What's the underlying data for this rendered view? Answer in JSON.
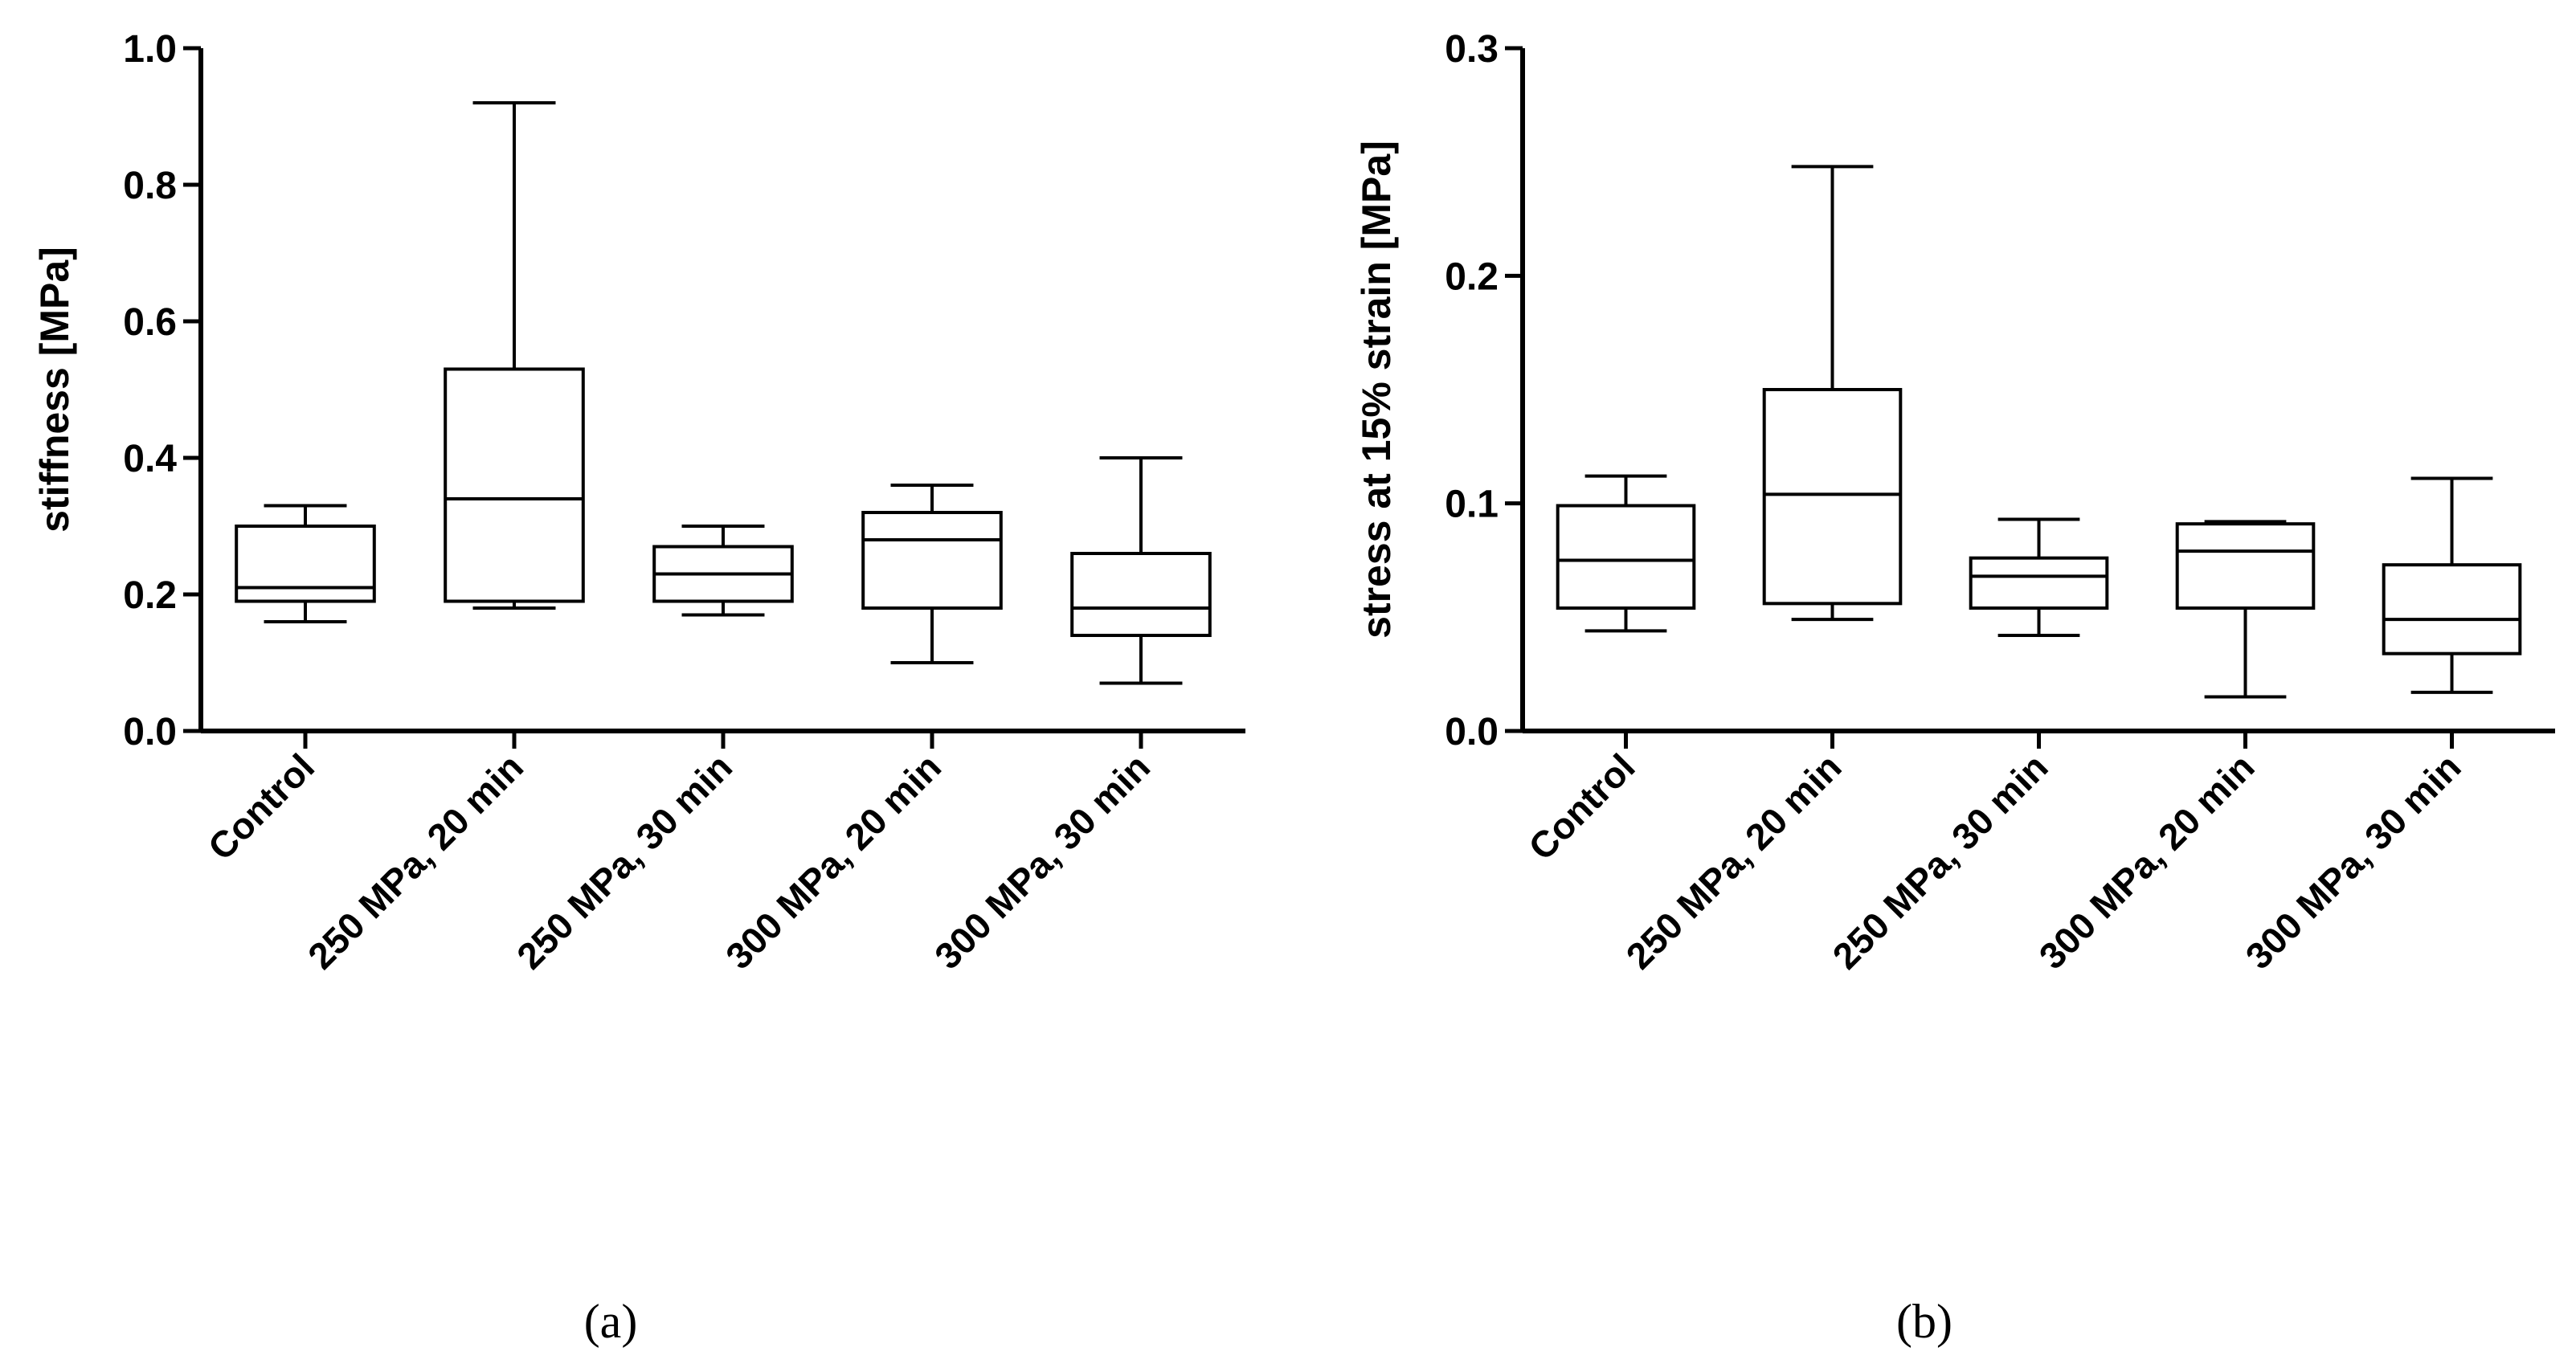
{
  "chart_data": [
    {
      "type": "boxplot",
      "panel": "a",
      "caption": "(a)",
      "ylabel": "stiffness [MPa]",
      "xlabel": "",
      "ylim": [
        0.0,
        1.0
      ],
      "yticks": [
        0.0,
        0.2,
        0.4,
        0.6,
        0.8,
        1.0
      ],
      "ytick_labels": [
        "0.0",
        "0.2",
        "0.4",
        "0.6",
        "0.8",
        "1.0"
      ],
      "categories": [
        "Control",
        "250 MPa, 20 min",
        "250 MPa, 30 min",
        "300 MPa, 20 min",
        "300 MPa, 30 min"
      ],
      "boxes": [
        {
          "min": 0.16,
          "q1": 0.19,
          "median": 0.21,
          "q3": 0.3,
          "max": 0.33
        },
        {
          "min": 0.18,
          "q1": 0.19,
          "median": 0.34,
          "q3": 0.53,
          "max": 0.92
        },
        {
          "min": 0.17,
          "q1": 0.19,
          "median": 0.23,
          "q3": 0.27,
          "max": 0.3
        },
        {
          "min": 0.1,
          "q1": 0.18,
          "median": 0.28,
          "q3": 0.32,
          "max": 0.36
        },
        {
          "min": 0.07,
          "q1": 0.14,
          "median": 0.18,
          "q3": 0.26,
          "max": 0.4
        }
      ]
    },
    {
      "type": "boxplot",
      "panel": "b",
      "caption": "(b)",
      "ylabel": "stress at 15% strain [MPa]",
      "xlabel": "",
      "ylim": [
        0.0,
        0.3
      ],
      "yticks": [
        0.0,
        0.1,
        0.2,
        0.3
      ],
      "ytick_labels": [
        "0.0",
        "0.1",
        "0.2",
        "0.3"
      ],
      "categories": [
        "Control",
        "250 MPa, 20 min",
        "250 MPa, 30 min",
        "300 MPa, 20 min",
        "300 MPa, 30 min"
      ],
      "boxes": [
        {
          "min": 0.044,
          "q1": 0.054,
          "median": 0.075,
          "q3": 0.099,
          "max": 0.112
        },
        {
          "min": 0.049,
          "q1": 0.056,
          "median": 0.104,
          "q3": 0.15,
          "max": 0.248
        },
        {
          "min": 0.042,
          "q1": 0.054,
          "median": 0.068,
          "q3": 0.076,
          "max": 0.093
        },
        {
          "min": 0.015,
          "q1": 0.054,
          "median": 0.079,
          "q3": 0.091,
          "max": 0.092
        },
        {
          "min": 0.017,
          "q1": 0.034,
          "median": 0.049,
          "q3": 0.073,
          "max": 0.111
        }
      ]
    }
  ]
}
